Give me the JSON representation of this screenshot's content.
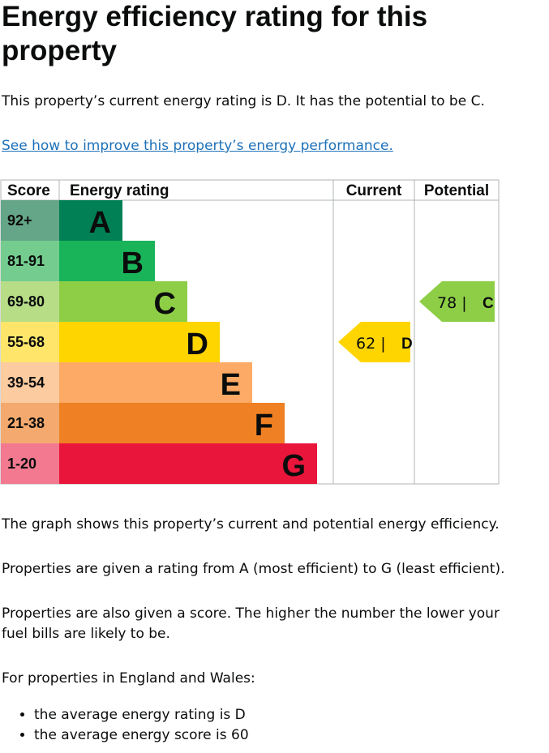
{
  "page": {
    "title": "Energy efficiency rating for this property",
    "intro": "This property’s current energy rating is D. It has the potential to be C.",
    "improve_link": "See how to improve this property’s energy performance.",
    "graph_note": "The graph shows this property’s current and potential energy efficiency.",
    "rating_note": "Properties are given a rating from A (most efficient) to G (least efficient).",
    "score_note": "Properties are also given a score. The higher the number the lower your fuel bills are likely to be.",
    "region_note": "For properties in England and Wales:",
    "stats": [
      "the average energy rating is D",
      "the average energy score is 60"
    ]
  },
  "chart_data": {
    "type": "bar",
    "headers": {
      "score": "Score",
      "rating": "Energy rating",
      "current": "Current",
      "potential": "Potential"
    },
    "bands": [
      {
        "letter": "A",
        "range": "92+",
        "min": 92,
        "max": 100,
        "color": "#008054",
        "score_bg": "#65a588"
      },
      {
        "letter": "B",
        "range": "81-91",
        "min": 81,
        "max": 91,
        "color": "#19b459",
        "score_bg": "#74cd8f"
      },
      {
        "letter": "C",
        "range": "69-80",
        "min": 69,
        "max": 80,
        "color": "#8dce46",
        "score_bg": "#b7dd87"
      },
      {
        "letter": "D",
        "range": "55-68",
        "min": 55,
        "max": 68,
        "color": "#ffd500",
        "score_bg": "#ffe66a"
      },
      {
        "letter": "E",
        "range": "39-54",
        "min": 39,
        "max": 54,
        "color": "#fcaa65",
        "score_bg": "#fdcba0"
      },
      {
        "letter": "F",
        "range": "21-38",
        "min": 21,
        "max": 38,
        "color": "#ef8023",
        "score_bg": "#f4aa6e"
      },
      {
        "letter": "G",
        "range": "1-20",
        "min": 1,
        "max": 20,
        "color": "#e9153b",
        "score_bg": "#f27990"
      }
    ],
    "current": {
      "score": 62,
      "band": "D",
      "label": "62 |",
      "letter": "D"
    },
    "potential": {
      "score": 78,
      "band": "C",
      "label": "78 |",
      "letter": "C"
    }
  }
}
